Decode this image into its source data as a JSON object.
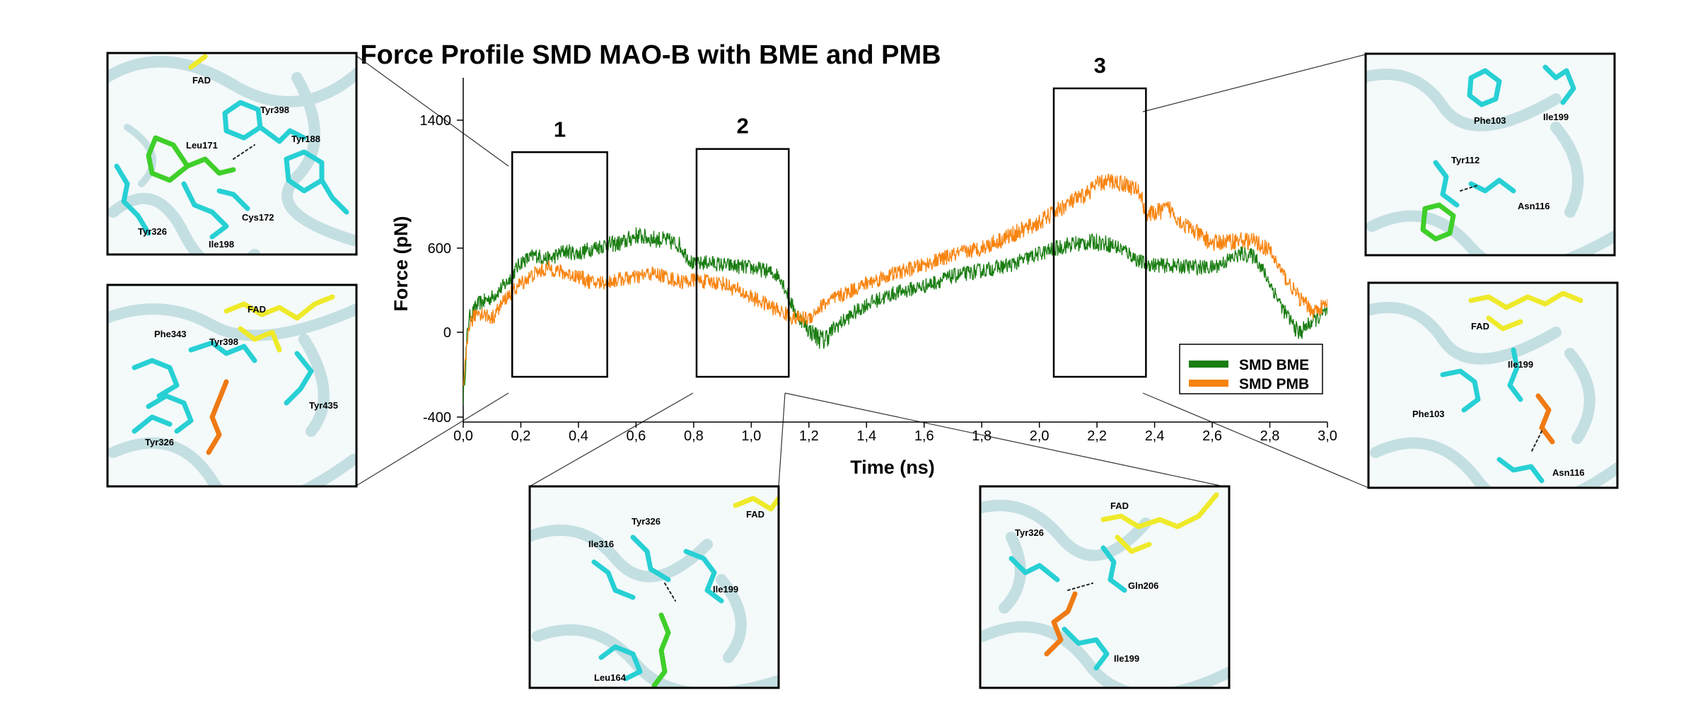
{
  "chart_data": {
    "type": "line",
    "title": "Force Profile SMD MAO-B with BME and PMB",
    "xlabel": "Time (ns)",
    "ylabel": "Force (pN)",
    "xlim": [
      0.0,
      3.0
    ],
    "ylim": [
      -400,
      1600
    ],
    "x_ticks": [
      "0,0",
      "0,2",
      "0,4",
      "0,6",
      "0,8",
      "1,0",
      "1,2",
      "1,4",
      "1,6",
      "1,8",
      "2,0",
      "2,2",
      "2,4",
      "2,6",
      "2,8",
      "3,0"
    ],
    "x_tick_values": [
      0.0,
      0.2,
      0.4,
      0.6,
      0.8,
      1.0,
      1.2,
      1.4,
      1.6,
      1.8,
      2.0,
      2.2,
      2.4,
      2.6,
      2.8,
      3.0
    ],
    "y_ticks": [
      "-400",
      "0",
      "600",
      "1400"
    ],
    "y_tick_values": [
      -400,
      0,
      600,
      1400
    ],
    "legend_position": "bottom-right",
    "series": [
      {
        "name": "SMD BME",
        "color": "#1a7d12",
        "noise": 55,
        "x": [
          0.0,
          0.02,
          0.05,
          0.1,
          0.15,
          0.2,
          0.25,
          0.3,
          0.35,
          0.4,
          0.45,
          0.5,
          0.55,
          0.6,
          0.65,
          0.7,
          0.75,
          0.8,
          0.85,
          0.9,
          0.95,
          1.0,
          1.05,
          1.1,
          1.15,
          1.2,
          1.25,
          1.3,
          1.4,
          1.5,
          1.6,
          1.7,
          1.8,
          1.9,
          2.0,
          2.1,
          2.2,
          2.25,
          2.3,
          2.35,
          2.4,
          2.5,
          2.6,
          2.7,
          2.75,
          2.8,
          2.85,
          2.9,
          2.95,
          3.0
        ],
        "y": [
          -300,
          100,
          200,
          250,
          350,
          500,
          550,
          520,
          580,
          560,
          600,
          620,
          630,
          680,
          660,
          650,
          620,
          480,
          500,
          480,
          470,
          460,
          440,
          400,
          150,
          20,
          -40,
          50,
          200,
          280,
          330,
          400,
          440,
          480,
          560,
          620,
          640,
          620,
          580,
          500,
          480,
          470,
          460,
          560,
          540,
          350,
          150,
          0,
          80,
          150
        ]
      },
      {
        "name": "SMD PMB",
        "color": "#f8830e",
        "noise": 55,
        "x": [
          0.0,
          0.02,
          0.05,
          0.1,
          0.15,
          0.2,
          0.25,
          0.3,
          0.35,
          0.4,
          0.45,
          0.5,
          0.55,
          0.6,
          0.65,
          0.7,
          0.75,
          0.8,
          0.85,
          0.9,
          0.95,
          1.0,
          1.05,
          1.1,
          1.15,
          1.2,
          1.25,
          1.3,
          1.4,
          1.5,
          1.6,
          1.7,
          1.8,
          1.9,
          2.0,
          2.1,
          2.15,
          2.2,
          2.25,
          2.3,
          2.35,
          2.37,
          2.4,
          2.45,
          2.5,
          2.6,
          2.7,
          2.75,
          2.8,
          2.85,
          2.9,
          2.95,
          3.0
        ],
        "y": [
          -300,
          50,
          150,
          100,
          250,
          350,
          420,
          460,
          420,
          400,
          350,
          360,
          380,
          390,
          420,
          400,
          360,
          370,
          360,
          350,
          300,
          250,
          200,
          150,
          100,
          100,
          200,
          250,
          350,
          420,
          480,
          550,
          600,
          680,
          760,
          880,
          920,
          1000,
          1020,
          1000,
          950,
          800,
          820,
          850,
          750,
          630,
          650,
          640,
          580,
          400,
          250,
          150,
          200
        ]
      }
    ],
    "regions": [
      {
        "label": "1",
        "x_start": 0.17,
        "x_end": 0.5,
        "y_top": 1200,
        "y_bottom": -210
      },
      {
        "label": "2",
        "x_start": 0.81,
        "x_end": 1.13,
        "y_top": 1220,
        "y_bottom": -210
      },
      {
        "label": "3",
        "x_start": 2.05,
        "x_end": 2.37,
        "y_top": 1580,
        "y_bottom": -210
      }
    ]
  },
  "panels": {
    "p1": {
      "labels": [
        "FAD",
        "Tyr398",
        "Leu171",
        "Tyr188",
        "Tyr326",
        "Cys172",
        "Ile198"
      ]
    },
    "p2": {
      "labels": [
        "FAD",
        "Phe343",
        "Tyr398",
        "Tyr435",
        "Tyr326"
      ]
    },
    "p3": {
      "labels": [
        "Tyr326",
        "FAD",
        "Ile316",
        "Ile199",
        "Leu164"
      ]
    },
    "p4": {
      "labels": [
        "FAD",
        "Tyr326",
        "Gln206",
        "Ile199"
      ]
    },
    "p5": {
      "labels": [
        "Phe103",
        "Ile199",
        "Tyr112",
        "Asn116"
      ]
    },
    "p6": {
      "labels": [
        "FAD",
        "Ile199",
        "Phe103",
        "Asn116"
      ]
    }
  },
  "colors": {
    "cartoon": "#c4dfe2",
    "cartoon_edge": "#9fc3c8",
    "carbon_cyan": "#27d0d4",
    "ligand_green": "#3fcf2a",
    "ligand_orange": "#ef7a13",
    "fad_yellow": "#eeea2a"
  }
}
